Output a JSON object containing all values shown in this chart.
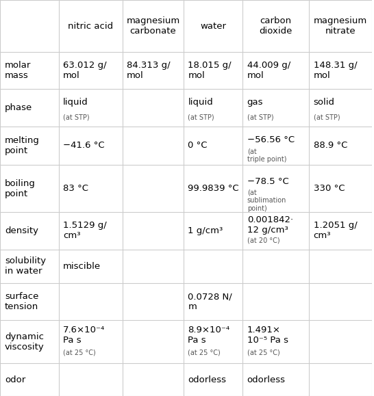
{
  "col_headers": [
    "",
    "nitric acid",
    "magnesium\ncarbonate",
    "water",
    "carbon\ndioxide",
    "magnesium\nnitrate"
  ],
  "row_headers": [
    "molar\nmass",
    "phase",
    "melting\npoint",
    "boiling\npoint",
    "density",
    "solubility\nin water",
    "surface\ntension",
    "dynamic\nviscosity",
    "odor"
  ],
  "cells": [
    [
      "63.012 g/\nmol",
      "84.313 g/\nmol",
      "18.015 g/\nmol",
      "44.009 g/\nmol",
      "148.31 g/\nmol"
    ],
    [
      "liquid\n(at STP)",
      "",
      "liquid\n(at STP)",
      "gas\n(at STP)",
      "solid\n(at STP)"
    ],
    [
      "−41.6 °C",
      "",
      "0 °C",
      "−56.56 °C\n(at\ntriple point)",
      "88.9 °C"
    ],
    [
      "83 °C",
      "",
      "99.9839 °C",
      "−78.5 °C\n(at\nsublimation\npoint)",
      "330 °C"
    ],
    [
      "1.5129 g/\ncm³",
      "",
      "1 g/cm³",
      "0.001842·\n12 g/cm³\n(at 20 °C)",
      "1.2051 g/\ncm³"
    ],
    [
      "miscible",
      "",
      "",
      "",
      ""
    ],
    [
      "",
      "",
      "0.0728 N/\nm",
      "",
      ""
    ],
    [
      "7.6×10⁻⁴\nPa s\n(at 25 °C)",
      "",
      "8.9×10⁻⁴\nPa s\n(at 25 °C)",
      "1.491×\n10⁻⁵ Pa s\n(at 25 °C)",
      ""
    ],
    [
      "",
      "",
      "odorless",
      "odorless",
      ""
    ]
  ],
  "bg_color": "#ffffff",
  "header_bg": "#ffffff",
  "line_color": "#cccccc",
  "text_color": "#000000",
  "small_text_color": "#555555",
  "header_fontsize": 9.5,
  "cell_fontsize": 9.5,
  "small_fontsize": 7.5,
  "row_header_fontsize": 9.5
}
